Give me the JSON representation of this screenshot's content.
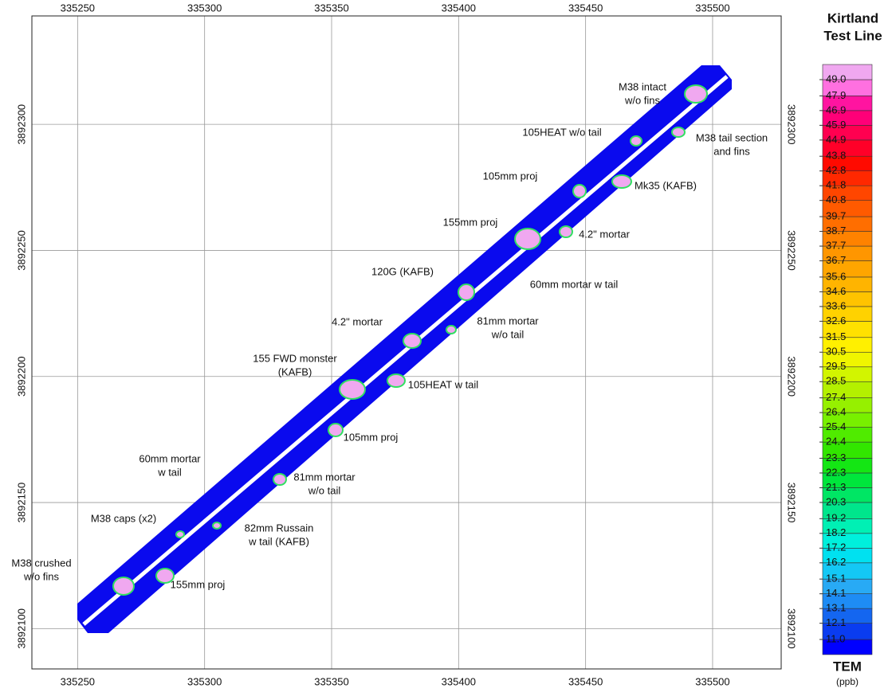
{
  "chart_data": {
    "type": "contour",
    "xlim": [
      335232,
      335527
    ],
    "ylim": [
      3892084,
      3892343
    ],
    "xticks": [
      335250,
      335300,
      335350,
      335400,
      335450,
      335500
    ],
    "yticks": [
      3892100,
      3892150,
      3892200,
      3892250,
      3892300
    ],
    "grid": true,
    "colorbar": {
      "title": [
        "Kirtland",
        "Test Line"
      ],
      "quantity": "TEM",
      "unit": "(ppb)",
      "levels": [
        {
          "value": 11,
          "label": "11.0"
        },
        12.1,
        13.1,
        14.1,
        15.1,
        16.2,
        17.2,
        18.2,
        19.2,
        20.3,
        21.3,
        22.3,
        23.3,
        24.4,
        25.4,
        26.4,
        27.4,
        28.5,
        29.5,
        30.5,
        31.5,
        32.6,
        33.6,
        34.6,
        35.6,
        36.7,
        37.7,
        38.7,
        39.7,
        40.8,
        41.8,
        42.8,
        43.8,
        44.9,
        45.9,
        46.9,
        47.9,
        {
          "value": 49,
          "label": "49.0"
        }
      ],
      "colors": [
        "#0000ff",
        "#0a3cf0",
        "#1466f0",
        "#1e8cf5",
        "#28aaf5",
        "#14c8f5",
        "#00e1f0",
        "#00f0dc",
        "#00f0b4",
        "#00e68c",
        "#00e664",
        "#00e63c",
        "#14e614",
        "#32e600",
        "#50eb00",
        "#78f000",
        "#96f000",
        "#b4f000",
        "#d2f500",
        "#f0f500",
        "#fff000",
        "#ffe100",
        "#ffd200",
        "#ffc300",
        "#ffb400",
        "#ffa500",
        "#ff9600",
        "#ff8200",
        "#ff6e00",
        "#ff5a00",
        "#ff4600",
        "#ff2800",
        "#ff0a00",
        "#ff0028",
        "#ff0050",
        "#ff0078",
        "#ff14a0",
        "#ff70e0",
        "#f0a8f0"
      ]
    },
    "annotations": [
      [
        "M38 intact",
        "w/o fins"
      ],
      [
        "105HEAT w/o tail"
      ],
      [
        "M38 tail section",
        "and fins"
      ],
      [
        "105mm proj"
      ],
      [
        "Mk35 (KAFB)"
      ],
      [
        "155mm proj"
      ],
      [
        "4.2\" mortar"
      ],
      [
        "120G (KAFB)"
      ],
      [
        "60mm mortar w tail"
      ],
      [
        "4.2\" mortar"
      ],
      [
        "81mm mortar",
        "w/o tail"
      ],
      [
        "155 FWD monster",
        "(KAFB)"
      ],
      [
        "105HEAT w tail"
      ],
      [
        "105mm proj"
      ],
      [
        "60mm mortar",
        "w tail"
      ],
      [
        "81mm mortar",
        "w/o tail"
      ],
      [
        "M38 caps (x2)"
      ],
      [
        "82mm Russain",
        "w tail (KAFB)"
      ],
      [
        "M38 crushed",
        "w/o fins"
      ],
      [
        "155mm proj"
      ]
    ]
  }
}
